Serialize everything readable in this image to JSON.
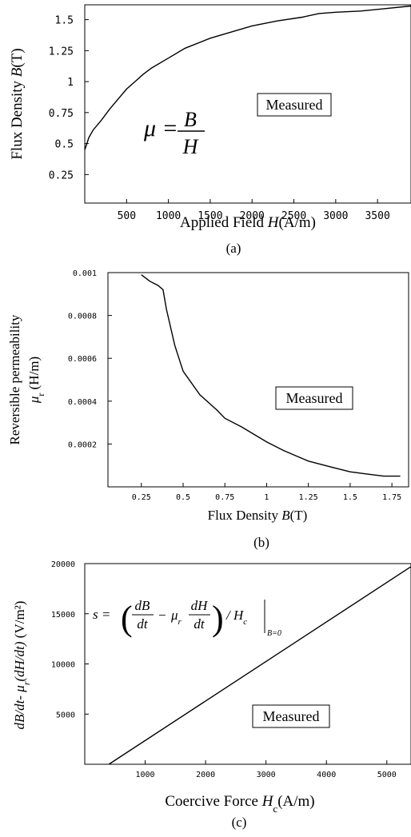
{
  "chart_data": [
    {
      "type": "line",
      "caption": "(a)",
      "xlabel": "Applied Field H(A/m)",
      "xlabel_parts": [
        "Applied Field ",
        "H",
        "(A/m)"
      ],
      "ylabel": "Flux Density B(T)",
      "ylabel_parts": [
        "Flux Density ",
        "B",
        "(T)"
      ],
      "xlim": [
        0,
        3900
      ],
      "ylim": [
        0.02,
        1.62
      ],
      "xticks": [
        500,
        1000,
        1500,
        2000,
        2500,
        3000,
        3500
      ],
      "xtick_labels": [
        "500",
        "1000",
        "1500",
        "2000",
        "2500",
        "3000",
        "3500"
      ],
      "yticks": [
        0.25,
        0.5,
        0.75,
        1.0,
        1.25,
        1.5
      ],
      "ytick_labels": [
        "0.25",
        "0.5",
        "0.75",
        "1",
        "1.25",
        "1.5"
      ],
      "annotation": "Measured",
      "equation": {
        "lhs": "μ =",
        "numerator": "B",
        "denominator": "H"
      },
      "series": [
        {
          "x": [
            0,
            50,
            100,
            200,
            300,
            400,
            500,
            600,
            700,
            800,
            1000,
            1200,
            1500,
            1800,
            2000,
            2300,
            2600,
            2800,
            3000,
            3300,
            3600,
            3900
          ],
          "y": [
            0.45,
            0.55,
            0.61,
            0.69,
            0.78,
            0.86,
            0.94,
            1.0,
            1.06,
            1.11,
            1.19,
            1.27,
            1.35,
            1.41,
            1.45,
            1.49,
            1.52,
            1.55,
            1.56,
            1.57,
            1.59,
            1.61
          ]
        }
      ]
    },
    {
      "type": "line",
      "caption": "(b)",
      "xlabel": "Flux Density B(T)",
      "xlabel_parts": [
        "Flux Density ",
        "B",
        "(T)"
      ],
      "ylabel": "Reversible permeability μr (H/m)",
      "ylabel_line1": "Reversible permeability",
      "ylabel_line2_sym": "μ",
      "ylabel_line2_sub": "r",
      "ylabel_line2_rest": " (H/m)",
      "xlim": [
        0.05,
        1.85
      ],
      "ylim": [
        0.0,
        0.001
      ],
      "xticks": [
        0.25,
        0.5,
        0.75,
        1.0,
        1.25,
        1.5,
        1.75
      ],
      "xtick_labels": [
        "0.25",
        "0.5",
        "0.75",
        "1",
        "1.25",
        "1.5",
        "1.75"
      ],
      "yticks": [
        0.0002,
        0.0004,
        0.0006,
        0.0008,
        0.001
      ],
      "ytick_labels": [
        "0.0002",
        "0.0004",
        "0.0006",
        "0.0008",
        "0.001"
      ],
      "annotation": "Measured",
      "series": [
        {
          "x": [
            0.25,
            0.3,
            0.35,
            0.38,
            0.4,
            0.45,
            0.5,
            0.6,
            0.7,
            0.75,
            0.85,
            1.0,
            1.1,
            1.25,
            1.4,
            1.5,
            1.6,
            1.7,
            1.8
          ],
          "y": [
            0.00099,
            0.00096,
            0.00094,
            0.00092,
            0.00083,
            0.00066,
            0.00054,
            0.00043,
            0.00036,
            0.00032,
            0.00028,
            0.00021,
            0.00017,
            0.00012,
            9e-05,
            7e-05,
            6e-05,
            5e-05,
            5e-05
          ]
        }
      ]
    },
    {
      "type": "line",
      "caption": "(c)",
      "xlabel": "Coercive Force Hc(A/m)",
      "xlabel_pre": "Coercive Force ",
      "xlabel_sym": "H",
      "xlabel_sub": "c",
      "xlabel_post": "(A/m)",
      "ylabel": "dB/dt- μr(dH/dt) (V/m²)",
      "ylabel_a": "dB/dt- μ",
      "ylabel_sub": "r",
      "ylabel_b": "(dH/dt)",
      "ylabel_c": " (V/m²)",
      "xlim": [
        0,
        5400
      ],
      "ylim": [
        0,
        20000
      ],
      "xticks": [
        1000,
        2000,
        3000,
        4000,
        5000
      ],
      "xtick_labels": [
        "1000",
        "2000",
        "3000",
        "4000",
        "5000"
      ],
      "yticks": [
        5000,
        10000,
        15000,
        20000
      ],
      "ytick_labels": [
        "5000",
        "10000",
        "15000",
        "20000"
      ],
      "annotation": "Measured",
      "equation": {
        "lhs": "s =",
        "n1": "dB",
        "d1": "dt",
        "minus": "−",
        "mu": "μ",
        "mu_sub": "r",
        "n2": "dH",
        "d2": "dt",
        "tail": "/ H",
        "tail_sub": "c",
        "cond": "B=0"
      },
      "series": [
        {
          "x": [
            400,
            5400
          ],
          "y": [
            0,
            19700
          ]
        }
      ]
    }
  ]
}
